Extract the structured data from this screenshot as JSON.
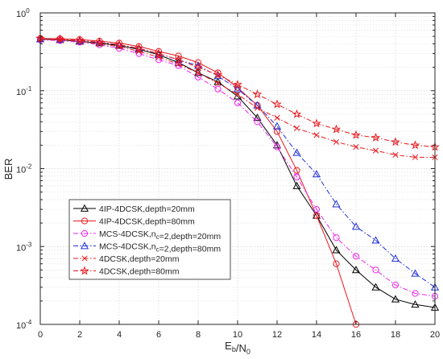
{
  "chart_data": {
    "type": "line",
    "xlabel": "E_b/N_0",
    "ylabel": "BER",
    "xscale": "linear",
    "yscale": "log",
    "xlim": [
      0,
      20
    ],
    "ylim": [
      0.0001,
      1
    ],
    "xticks": [
      0,
      2,
      4,
      6,
      8,
      10,
      12,
      14,
      16,
      18,
      20
    ],
    "yticks": [
      {
        "value": 1,
        "base": "10",
        "exp": "0"
      },
      {
        "value": 0.1,
        "base": "10",
        "exp": "-1"
      },
      {
        "value": 0.01,
        "base": "10",
        "exp": "-2"
      },
      {
        "value": 0.001,
        "base": "10",
        "exp": "-3"
      },
      {
        "value": 0.0001,
        "base": "10",
        "exp": "-4"
      }
    ],
    "grid": true,
    "legend_position": "lower-left",
    "series": [
      {
        "name": "4IP-4DCSK,depth=20mm",
        "color": "#000000",
        "line": "solid",
        "marker": "triangle",
        "x": [
          0,
          1,
          2,
          3,
          4,
          5,
          6,
          7,
          8,
          9,
          10,
          11,
          12,
          13,
          14,
          15,
          16,
          17,
          18,
          19,
          20
        ],
        "y": [
          0.46,
          0.45,
          0.43,
          0.41,
          0.38,
          0.34,
          0.29,
          0.23,
          0.17,
          0.13,
          0.085,
          0.045,
          0.02,
          0.006,
          0.0025,
          0.0009,
          0.0005,
          0.0003,
          0.00021,
          0.00018,
          0.000165
        ]
      },
      {
        "name": "4IP-4DCSK,depth=80mm",
        "color": "#e8191e",
        "line": "solid",
        "marker": "circle",
        "x": [
          0,
          1,
          2,
          3,
          4,
          5,
          6,
          7,
          8,
          9,
          10,
          11,
          12,
          13,
          14,
          15,
          16
        ],
        "y": [
          0.47,
          0.465,
          0.455,
          0.435,
          0.41,
          0.37,
          0.32,
          0.28,
          0.23,
          0.17,
          0.11,
          0.065,
          0.03,
          0.0095,
          0.0025,
          0.0006,
          0.0001
        ]
      },
      {
        "name": "MCS-4DCSK,n_c=2,depth=20mm",
        "color": "#ef22ef",
        "line": "dashdot",
        "marker": "circle",
        "x": [
          0,
          1,
          2,
          3,
          4,
          5,
          6,
          7,
          8,
          9,
          10,
          11,
          12,
          13,
          14,
          15,
          16,
          17,
          18,
          19,
          20
        ],
        "y": [
          0.45,
          0.44,
          0.42,
          0.39,
          0.35,
          0.3,
          0.25,
          0.21,
          0.15,
          0.105,
          0.07,
          0.04,
          0.019,
          0.0078,
          0.003,
          0.0013,
          0.00075,
          0.0005,
          0.00032,
          0.00025,
          0.00023
        ]
      },
      {
        "name": "MCS-4DCSK,n_c=2,depth=80mm",
        "color": "#1f2fd8",
        "line": "dashdot",
        "marker": "triangle",
        "x": [
          0,
          1,
          2,
          3,
          4,
          5,
          6,
          7,
          8,
          9,
          10,
          11,
          12,
          13,
          14,
          15,
          16,
          17,
          18,
          19,
          20
        ],
        "y": [
          0.46,
          0.455,
          0.44,
          0.42,
          0.39,
          0.35,
          0.3,
          0.25,
          0.21,
          0.155,
          0.105,
          0.065,
          0.035,
          0.016,
          0.0085,
          0.0035,
          0.0018,
          0.0012,
          0.0007,
          0.00045,
          0.0003
        ]
      },
      {
        "name": "4DCSK,depth=20mm",
        "color": "#e8191e",
        "line": "dashdot",
        "marker": "x",
        "x": [
          0,
          1,
          2,
          3,
          4,
          5,
          6,
          7,
          8,
          9,
          10,
          11,
          12,
          13,
          14,
          15,
          16,
          17,
          18,
          19,
          20
        ],
        "y": [
          0.46,
          0.45,
          0.43,
          0.4,
          0.37,
          0.32,
          0.27,
          0.22,
          0.17,
          0.125,
          0.09,
          0.06,
          0.045,
          0.033,
          0.027,
          0.022,
          0.019,
          0.017,
          0.015,
          0.014,
          0.014
        ]
      },
      {
        "name": "4DCSK,depth=80mm",
        "color": "#e8191e",
        "line": "dashdot",
        "marker": "star",
        "x": [
          0,
          1,
          2,
          3,
          4,
          5,
          6,
          7,
          8,
          9,
          10,
          11,
          12,
          13,
          14,
          15,
          16,
          17,
          18,
          19,
          20
        ],
        "y": [
          0.47,
          0.46,
          0.445,
          0.42,
          0.39,
          0.35,
          0.3,
          0.25,
          0.2,
          0.16,
          0.12,
          0.09,
          0.067,
          0.05,
          0.038,
          0.032,
          0.027,
          0.025,
          0.022,
          0.02,
          0.019
        ]
      }
    ]
  }
}
